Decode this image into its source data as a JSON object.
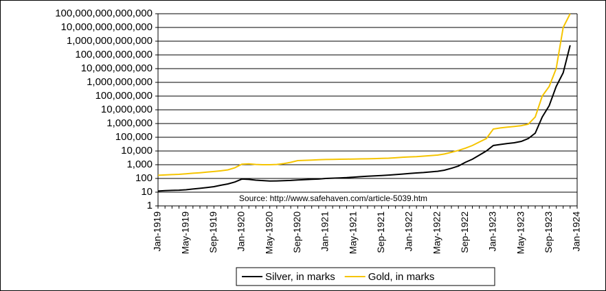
{
  "chart_data": {
    "type": "line",
    "annotation": "Source:  http://www.safehaven.com/article-5039.htm",
    "log_scale": true,
    "grid": true,
    "legend": "bottom",
    "categories": [
      "Jan-1919",
      null,
      null,
      null,
      "May-1919",
      null,
      null,
      null,
      "Sep-1919",
      null,
      null,
      null,
      "Jan-1920",
      null,
      null,
      null,
      "May-1920",
      null,
      null,
      null,
      "Sep-1920",
      null,
      null,
      null,
      "Jan-1921",
      null,
      null,
      null,
      "May-1921",
      null,
      null,
      null,
      "Sep-1921",
      null,
      null,
      null,
      "Jan-1922",
      null,
      null,
      null,
      "May-1922",
      null,
      null,
      null,
      "Sep-1922",
      null,
      null,
      null,
      "Jan-1923",
      null,
      null,
      null,
      "May-1923",
      null,
      null,
      null,
      "Sep-1923",
      null,
      null,
      null,
      "Jan-1924"
    ],
    "series": [
      {
        "name": "Silver, in marks",
        "color": "#000000",
        "values": [
          12,
          13,
          13.5,
          14,
          15,
          17,
          19,
          22,
          25,
          32,
          40,
          55,
          90,
          85,
          75,
          70,
          65,
          66,
          68,
          72,
          78,
          82,
          86,
          90,
          100,
          105,
          110,
          115,
          125,
          135,
          145,
          155,
          165,
          175,
          190,
          210,
          230,
          250,
          270,
          300,
          330,
          400,
          550,
          800,
          1500,
          2500,
          5000,
          10000,
          25000,
          30000,
          35000,
          40000,
          50000,
          80000,
          200000,
          3000000,
          20000000,
          500000000,
          5000000000,
          500000000000,
          null
        ]
      },
      {
        "name": "Gold, in marks",
        "color": "#f5c400",
        "values": [
          170,
          180,
          190,
          200,
          220,
          240,
          260,
          290,
          320,
          360,
          420,
          600,
          1100,
          1150,
          1050,
          1000,
          1000,
          1050,
          1200,
          1500,
          2000,
          2100,
          2200,
          2300,
          2400,
          2450,
          2500,
          2550,
          2600,
          2650,
          2700,
          2800,
          2900,
          3000,
          3200,
          3500,
          3700,
          3900,
          4200,
          4600,
          5000,
          6000,
          8000,
          11000,
          16000,
          25000,
          45000,
          80000,
          400000,
          480000,
          550000,
          620000,
          700000,
          900000,
          3000000,
          100000000,
          500000000,
          10000000000,
          10000000000000,
          100000000000000,
          null
        ]
      }
    ],
    "ylim": [
      1,
      100000000000000
    ],
    "yticks": [
      1,
      10,
      100,
      {
        "value": 1000,
        "label": "1,000"
      },
      {
        "value": 10000,
        "label": "10,000"
      },
      {
        "value": 100000,
        "label": "100,000"
      },
      {
        "value": 1000000,
        "label": "1,000,000"
      },
      {
        "value": 10000000,
        "label": "10,000,000"
      },
      {
        "value": 100000000,
        "label": "100,000,000"
      },
      {
        "value": 1000000000,
        "label": "1,000,000,000"
      },
      {
        "value": 10000000000,
        "label": "10,000,000,000"
      },
      {
        "value": 100000000000,
        "label": "100,000,000,000"
      },
      {
        "value": 1000000000000,
        "label": "1,000,000,000,000"
      },
      {
        "value": 10000000000000,
        "label": "10,000,000,000,000"
      },
      {
        "value": 100000000000000,
        "label": "100,000,000,000,000"
      }
    ]
  }
}
